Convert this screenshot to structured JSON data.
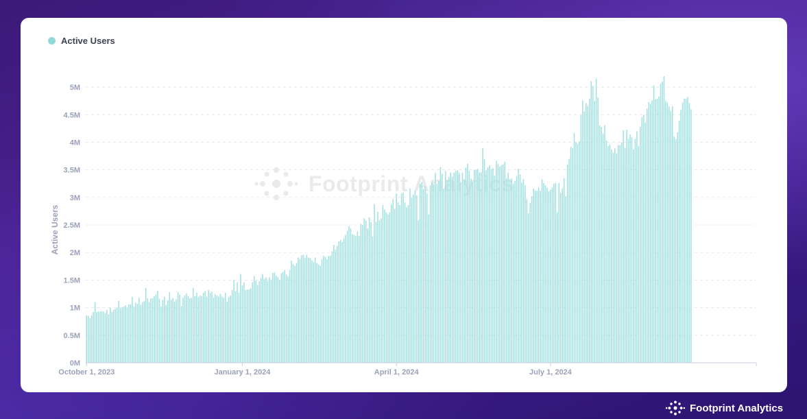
{
  "brand": {
    "name": "Footprint Analytics"
  },
  "watermark": {
    "text": "Footprint Analytics"
  },
  "colors": {
    "bar": "#a2e1e1",
    "legend_dot": "#93d8d8",
    "card": "#ffffff"
  },
  "chart_data": {
    "type": "bar",
    "legend": [
      "Active Users"
    ],
    "xlabel": "",
    "ylabel": "Active Users",
    "x_tick_labels": [
      "October 1, 2023",
      "January 1, 2024",
      "April 1, 2024",
      "July 1, 2024"
    ],
    "y_tick_labels": [
      "0M",
      "0.5M",
      "1M",
      "1.5M",
      "2M",
      "2.5M",
      "3M",
      "3.5M",
      "4M",
      "4.5M",
      "5M"
    ],
    "ylim": [
      0,
      5.3
    ],
    "y_unit": "millions",
    "grid": "horizontal dashed",
    "x_start": "2023-10-01",
    "x_end": "2024-10-30",
    "series": [
      {
        "name": "Active Users",
        "values": [
          0.86,
          0.85,
          0.81,
          0.86,
          0.92,
          1.1,
          0.92,
          0.93,
          0.93,
          0.94,
          0.93,
          0.9,
          0.96,
          0.88,
          1.0,
          0.92,
          0.96,
          0.98,
          1.0,
          1.12,
          0.99,
          1.01,
          1.02,
          1.04,
          1.0,
          1.06,
          1.06,
          1.2,
          1.02,
          1.09,
          1.07,
          1.18,
          1.05,
          1.1,
          1.12,
          1.36,
          1.17,
          1.1,
          1.17,
          1.17,
          1.21,
          1.24,
          1.3,
          1.16,
          1.02,
          1.14,
          1.2,
          1.05,
          1.13,
          1.28,
          1.14,
          1.17,
          1.11,
          1.15,
          1.28,
          1.24,
          1.03,
          1.18,
          1.22,
          1.26,
          1.21,
          1.17,
          1.18,
          1.36,
          1.21,
          1.27,
          1.19,
          1.22,
          1.21,
          1.27,
          1.3,
          1.2,
          1.32,
          1.27,
          1.29,
          1.18,
          1.24,
          1.22,
          1.2,
          1.25,
          1.2,
          1.18,
          1.27,
          1.11,
          1.19,
          1.22,
          1.32,
          1.5,
          1.3,
          1.46,
          1.27,
          1.61,
          1.4,
          1.46,
          1.32,
          1.33,
          1.33,
          1.35,
          1.46,
          1.57,
          1.49,
          1.41,
          1.48,
          1.54,
          1.61,
          1.52,
          1.55,
          1.48,
          1.55,
          1.51,
          1.63,
          1.64,
          1.58,
          1.55,
          1.5,
          1.62,
          1.64,
          1.68,
          1.6,
          1.57,
          1.68,
          1.85,
          1.79,
          1.76,
          1.81,
          1.91,
          1.88,
          1.95,
          1.96,
          1.9,
          1.96,
          1.91,
          1.9,
          1.86,
          1.83,
          1.91,
          1.81,
          1.78,
          1.76,
          1.88,
          1.94,
          1.92,
          1.88,
          1.94,
          1.94,
          2.02,
          2.14,
          2.05,
          2.12,
          2.2,
          2.23,
          2.19,
          2.26,
          2.32,
          2.39,
          2.48,
          2.44,
          2.33,
          2.32,
          2.3,
          2.38,
          2.3,
          2.52,
          2.5,
          2.62,
          2.58,
          2.44,
          2.64,
          2.55,
          2.29,
          2.88,
          2.56,
          2.74,
          2.58,
          2.62,
          2.86,
          2.78,
          2.73,
          2.69,
          2.73,
          2.87,
          2.97,
          2.79,
          3.07,
          2.91,
          2.86,
          3.07,
          3.09,
          2.91,
          2.82,
          2.86,
          3.16,
          2.99,
          3.05,
          3.12,
          3.04,
          2.58,
          3.25,
          3.28,
          3.16,
          3.2,
          3.07,
          2.69,
          3.22,
          3.28,
          3.23,
          3.45,
          3.25,
          3.3,
          3.55,
          3.43,
          3.16,
          3.48,
          3.32,
          3.37,
          3.45,
          3.38,
          3.45,
          3.48,
          3.49,
          3.45,
          3.28,
          3.45,
          3.33,
          3.54,
          3.61,
          3.48,
          3.34,
          3.28,
          3.5,
          3.5,
          3.52,
          3.45,
          3.46,
          3.9,
          3.69,
          3.49,
          3.55,
          3.58,
          3.51,
          3.53,
          3.4,
          3.66,
          3.61,
          3.56,
          3.58,
          3.6,
          3.65,
          3.35,
          3.45,
          3.33,
          3.34,
          3.25,
          3.3,
          3.38,
          3.52,
          3.42,
          3.27,
          3.33,
          3.22,
          2.97,
          2.71,
          2.9,
          3.02,
          3.16,
          3.12,
          3.12,
          3.18,
          3.12,
          3.33,
          3.26,
          3.22,
          3.18,
          3.11,
          3.14,
          3.18,
          3.25,
          3.26,
          2.73,
          3.26,
          3.08,
          3.16,
          3.35,
          3.02,
          3.6,
          3.7,
          3.92,
          3.89,
          4.17,
          4.0,
          3.97,
          4.02,
          4.49,
          4.76,
          4.56,
          4.71,
          4.66,
          4.79,
          5.11,
          5.02,
          4.75,
          5.16,
          4.81,
          4.31,
          4.28,
          4.16,
          4.31,
          4.03,
          3.93,
          3.96,
          3.87,
          3.81,
          3.89,
          3.8,
          3.95,
          3.95,
          4.0,
          4.22,
          3.9,
          4.23,
          4.06,
          4.14,
          4.09,
          3.87,
          4.06,
          4.2,
          3.93,
          4.28,
          4.46,
          4.5,
          4.36,
          4.61,
          4.73,
          4.7,
          4.76,
          5.03,
          4.78,
          4.79,
          4.83,
          5.06,
          5.1,
          5.2,
          4.75,
          4.72,
          4.65,
          4.57,
          4.65,
          4.1,
          4.06,
          4.18,
          4.39,
          4.59,
          4.72,
          4.79,
          4.79,
          4.82,
          4.71,
          4.6
        ]
      }
    ]
  }
}
